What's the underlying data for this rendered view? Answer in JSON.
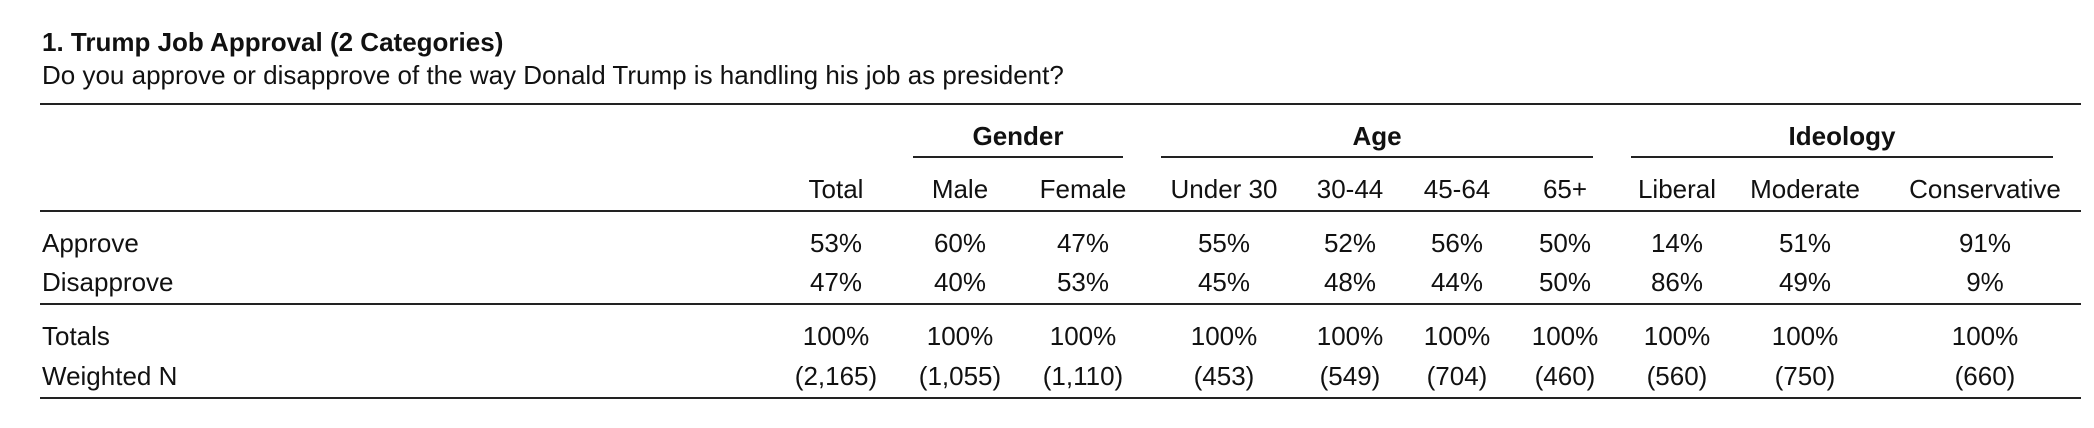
{
  "title": "1. Trump Job Approval (2 Categories)",
  "question": "Do you approve or disapprove of the way Donald Trump is handling his job as president?",
  "groups": {
    "gender": "Gender",
    "age": "Age",
    "ideology": "Ideology"
  },
  "columns": [
    "Total",
    "Male",
    "Female",
    "Under 30",
    "30-44",
    "45-64",
    "65+",
    "Liberal",
    "Moderate",
    "Conservative"
  ],
  "rows": [
    {
      "label": "Approve",
      "values": [
        "53%",
        "60%",
        "47%",
        "55%",
        "52%",
        "56%",
        "50%",
        "14%",
        "51%",
        "91%"
      ]
    },
    {
      "label": "Disapprove",
      "values": [
        "47%",
        "40%",
        "53%",
        "45%",
        "48%",
        "44%",
        "50%",
        "86%",
        "49%",
        "9%"
      ]
    }
  ],
  "totals": {
    "label": "Totals",
    "values": [
      "100%",
      "100%",
      "100%",
      "100%",
      "100%",
      "100%",
      "100%",
      "100%",
      "100%",
      "100%"
    ]
  },
  "weighted_n": {
    "label": "Weighted N",
    "values": [
      "(2,165)",
      "(1,055)",
      "(1,110)",
      "(453)",
      "(549)",
      "(704)",
      "(460)",
      "(560)",
      "(750)",
      "(660)"
    ]
  }
}
